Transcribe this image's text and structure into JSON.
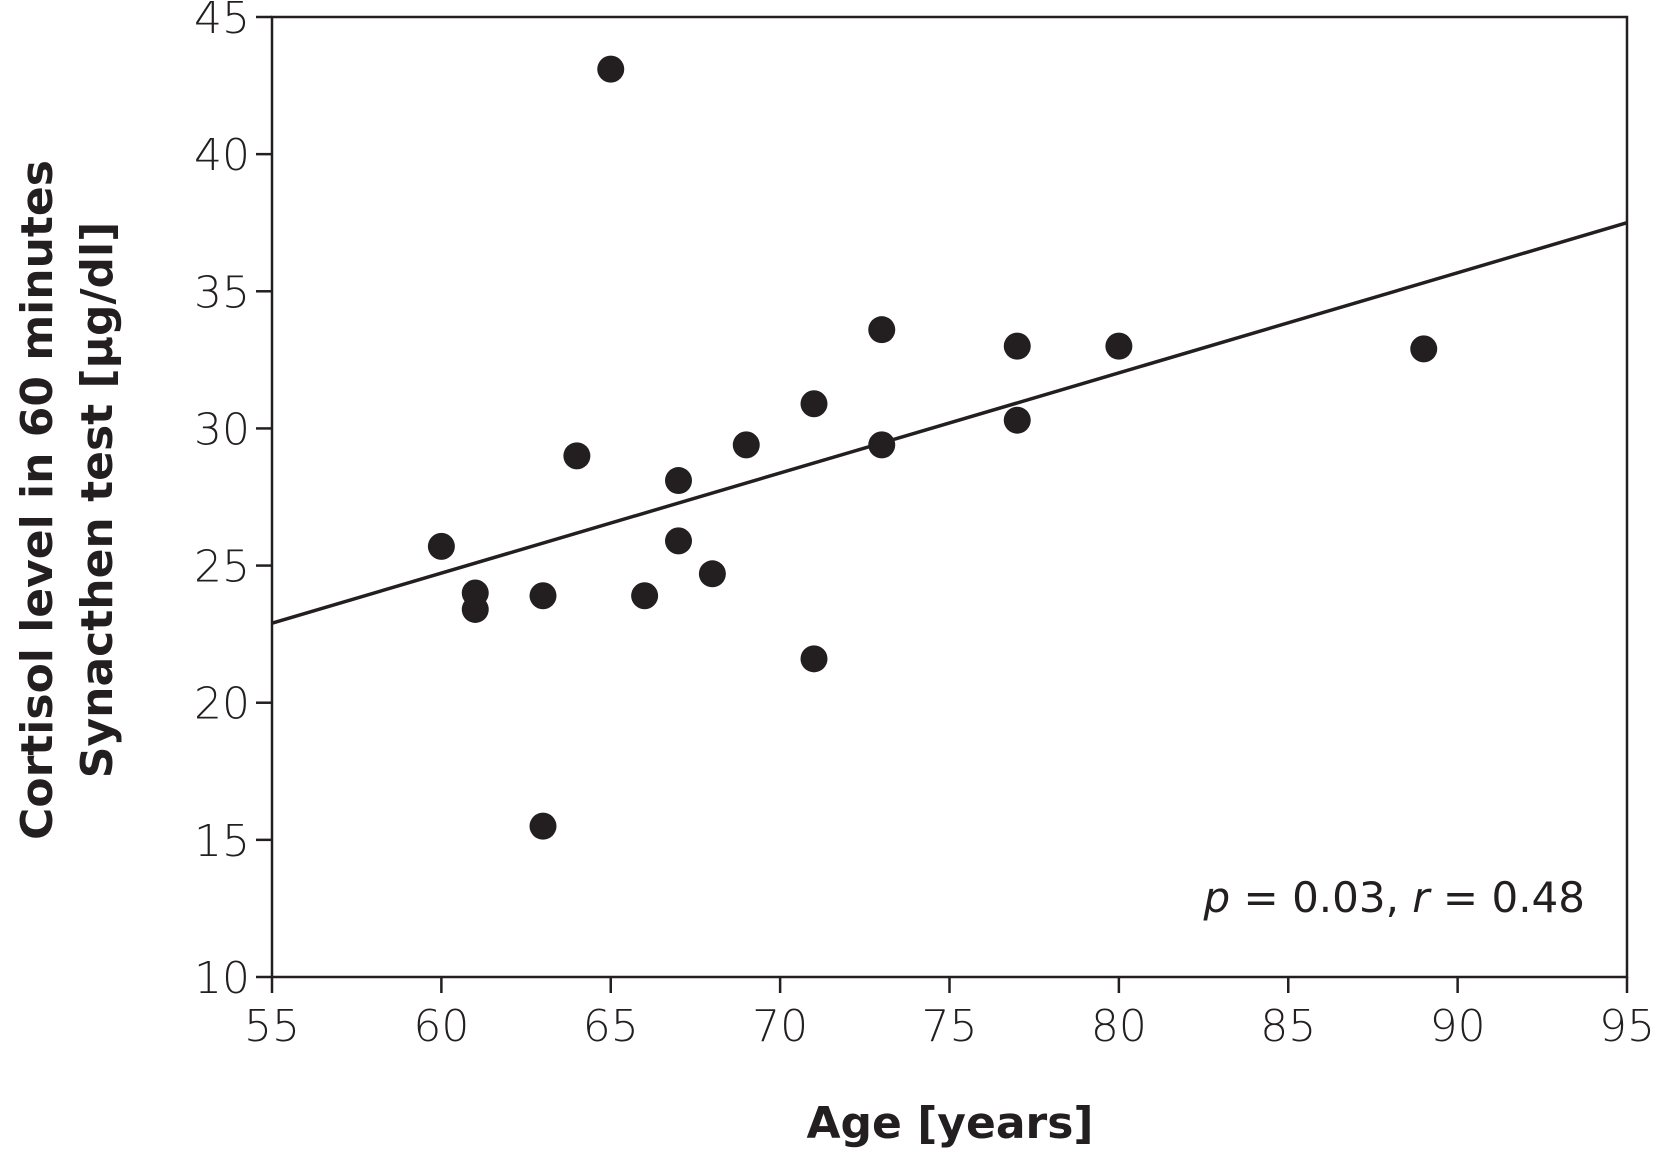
{
  "chart_data": {
    "type": "scatter",
    "xlabel": "Age [years]",
    "ylabel": [
      "Cortisol level in 60 minutes",
      "Synacthen test [µg/dl]"
    ],
    "x": [
      65,
      60,
      61,
      61,
      63,
      63,
      64,
      66,
      67,
      67,
      68,
      69,
      71,
      71,
      73,
      73,
      77,
      77,
      80,
      89
    ],
    "values": [
      43.1,
      25.7,
      24.0,
      23.4,
      23.9,
      15.5,
      29.0,
      23.9,
      28.1,
      25.9,
      24.7,
      29.4,
      30.9,
      21.6,
      33.6,
      29.4,
      33.0,
      30.3,
      33.0,
      32.9
    ],
    "color": "#231f20",
    "trendline": {
      "x": [
        55,
        95
      ],
      "y": [
        22.9,
        37.5
      ]
    },
    "annotation": [
      "p",
      " = 0.03, ",
      "r",
      " = 0.48"
    ],
    "xlim": [
      55,
      95
    ],
    "xticks": [
      55,
      60,
      65,
      70,
      75,
      80,
      85,
      90,
      95
    ],
    "ylim": [
      10,
      45
    ],
    "yticks": [
      10,
      15,
      20,
      25,
      30,
      35,
      40,
      45
    ]
  }
}
